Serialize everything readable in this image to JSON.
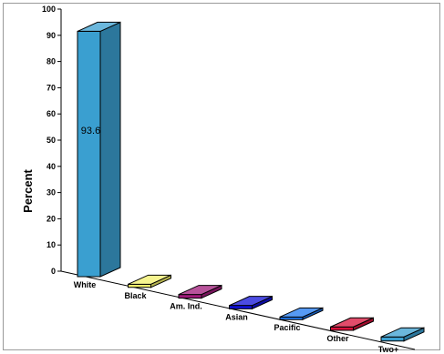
{
  "chart_data": {
    "type": "bar",
    "categories": [
      "White",
      "Black",
      "Am. Ind.",
      "Asian",
      "Pacific",
      "Other",
      "Two+"
    ],
    "values": [
      93.6,
      1.2,
      1.4,
      1.3,
      1.0,
      1.3,
      1.6
    ],
    "colors": [
      "#3a9fd0",
      "#f3f06a",
      "#a01a7a",
      "#1010d8",
      "#1e78f0",
      "#d8103a",
      "#3a9fd0"
    ],
    "data_labels": [
      "93.6",
      "",
      "",
      "",
      "",
      "",
      ""
    ],
    "ylabel": "Percent",
    "ylim": [
      0,
      100
    ],
    "yticks": [
      0,
      10,
      20,
      30,
      40,
      50,
      60,
      70,
      80,
      90,
      100
    ],
    "grid": false,
    "style": "3d"
  }
}
